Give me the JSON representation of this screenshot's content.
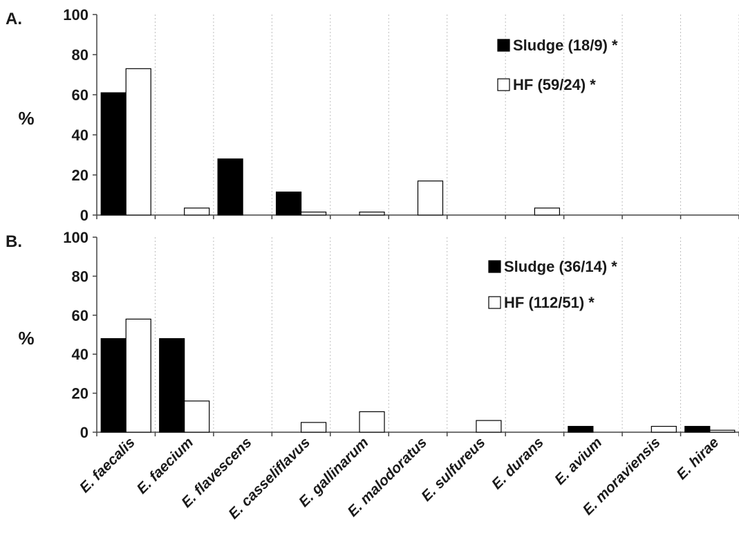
{
  "chart_data": [
    {
      "type": "bar",
      "panel_label": "A.",
      "ylabel": "%",
      "ylim": [
        0,
        100
      ],
      "yticks": [
        "0",
        "20",
        "40",
        "60",
        "80",
        "100"
      ],
      "categories": [
        "E. faecalis",
        "E. faecium",
        "E. flavescens",
        "E. casseliflavus",
        "E. gallinarum",
        "E. malodoratus",
        "E. sulfureus",
        "E. durans",
        "E. avium",
        "E. moraviensis",
        "E. hirae"
      ],
      "series": [
        {
          "name": "Sludge (18/9)",
          "marker": "*",
          "color": "#000000",
          "values": [
            61,
            0,
            28,
            11.5,
            0,
            0,
            0,
            0,
            0,
            0,
            0
          ]
        },
        {
          "name": "HF (59/24)",
          "marker": "*",
          "color": "#ffffff",
          "values": [
            73,
            3.5,
            0,
            1.5,
            1.5,
            17,
            0,
            3.5,
            0,
            0,
            0
          ]
        }
      ],
      "grid": "vertical dotted",
      "legend_position": "top-right"
    },
    {
      "type": "bar",
      "panel_label": "B.",
      "ylabel": "%",
      "ylim": [
        0,
        100
      ],
      "yticks": [
        "0",
        "20",
        "40",
        "60",
        "80",
        "100"
      ],
      "categories": [
        "E. faecalis",
        "E. faecium",
        "E. flavescens",
        "E. casseliflavus",
        "E. gallinarum",
        "E. malodoratus",
        "E. sulfureus",
        "E. durans",
        "E. avium",
        "E. moraviensis",
        "E. hirae"
      ],
      "series": [
        {
          "name": "Sludge (36/14)",
          "marker": "*",
          "color": "#000000",
          "values": [
            48,
            48,
            0,
            0,
            0,
            0,
            0,
            0,
            3,
            0,
            3
          ]
        },
        {
          "name": "HF (112/51)",
          "marker": "*",
          "color": "#ffffff",
          "values": [
            58,
            16,
            0,
            5,
            10.5,
            0,
            6,
            0,
            0,
            3,
            1
          ]
        }
      ],
      "grid": "vertical dotted",
      "legend_position": "top-right"
    }
  ]
}
